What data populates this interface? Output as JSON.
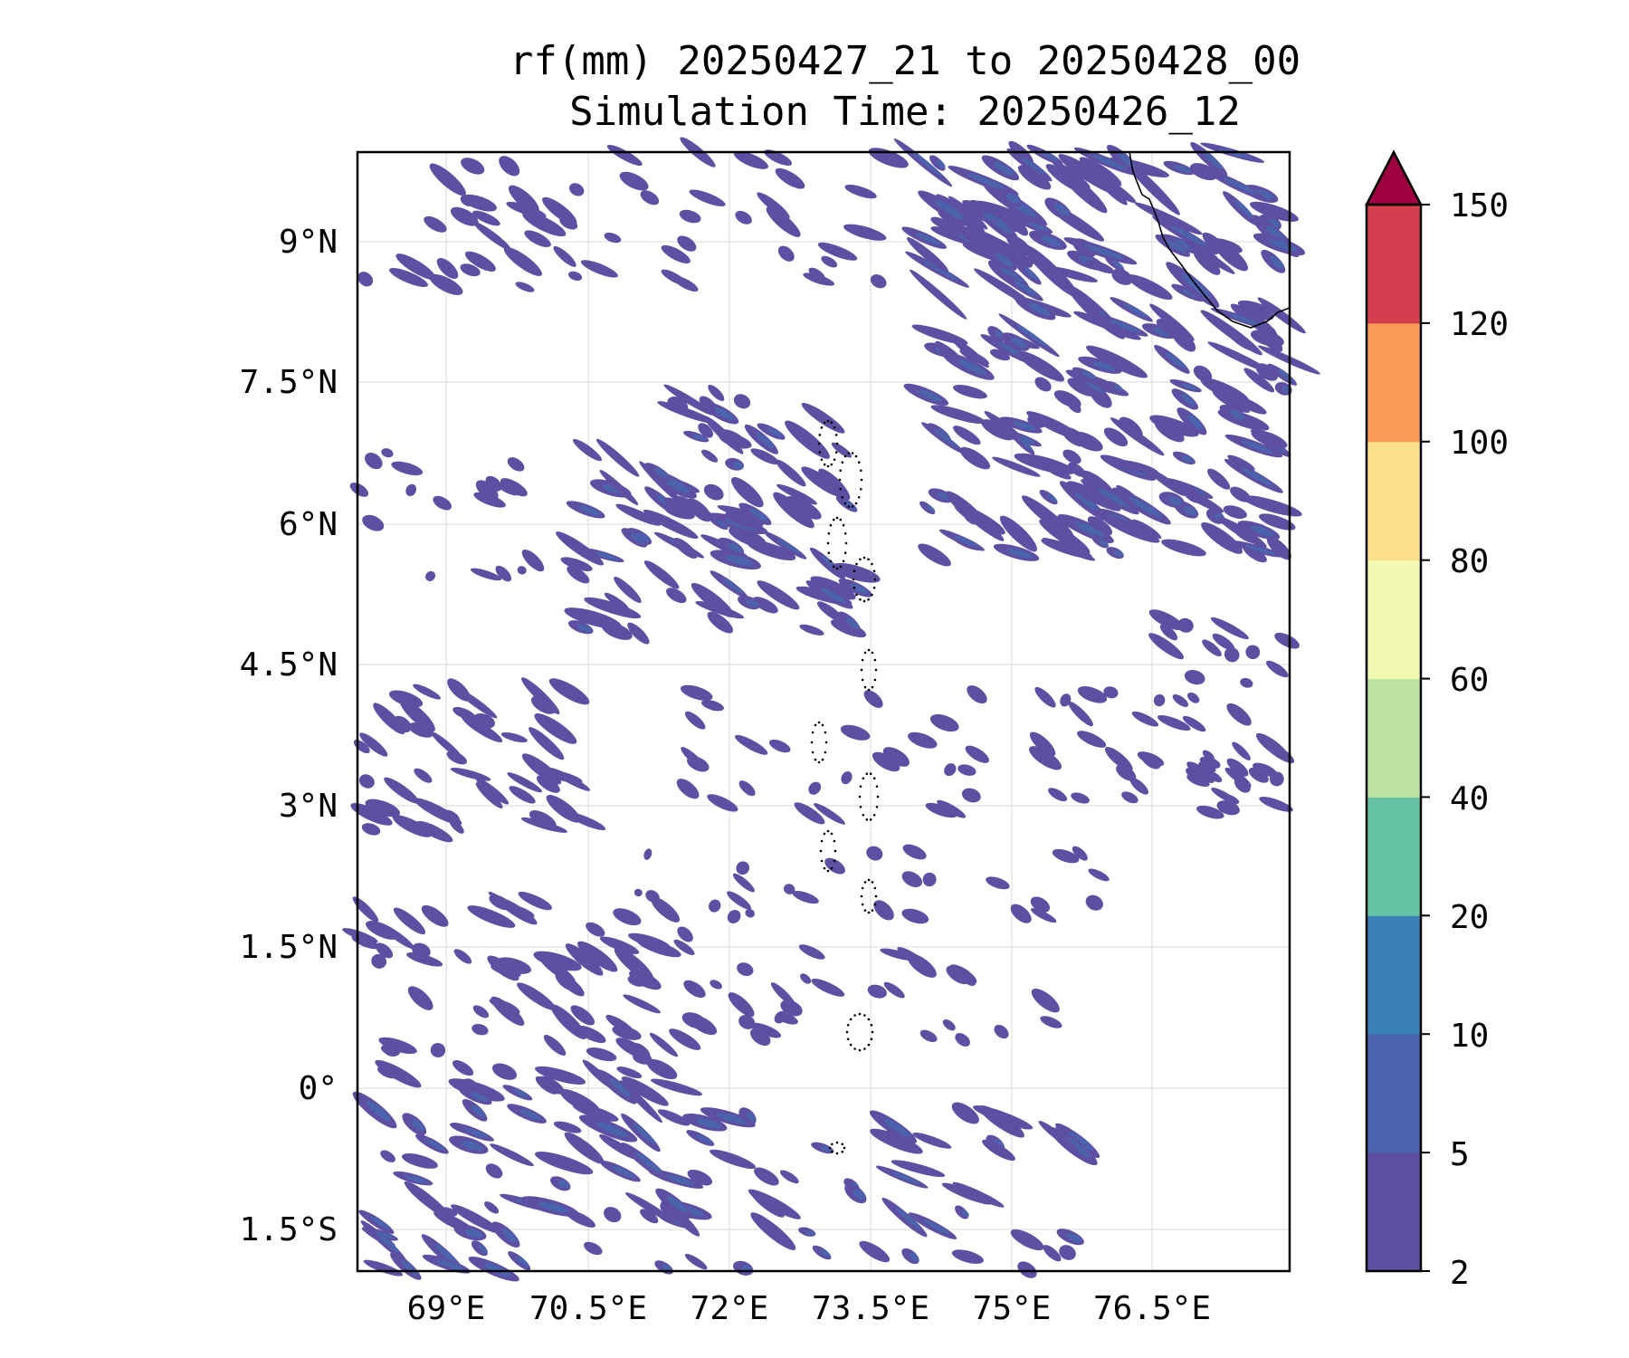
{
  "title": {
    "line1": "rf(mm) 20250427_21 to 20250428_00",
    "line2": "Simulation Time: 20250426_12"
  },
  "map": {
    "lon_ticks": [
      "69°E",
      "70.5°E",
      "72°E",
      "73.5°E",
      "75°E",
      "76.5°E"
    ],
    "lat_ticks": [
      "9°N",
      "7.5°N",
      "6°N",
      "4.5°N",
      "3°N",
      "1.5°N",
      "0°",
      "1.5°S"
    ],
    "gridlines": true,
    "coastline": "India southern tip (top-right)",
    "islands": "Maldives atolls (dotted, centre)"
  },
  "colorbar": {
    "extend": "max",
    "levels": [
      "2",
      "5",
      "10",
      "20",
      "40",
      "60",
      "80",
      "100",
      "120",
      "150"
    ],
    "colors": [
      "#5e4fa2",
      "#4b62ad",
      "#3980b9",
      "#66c2a5",
      "#bce4a0",
      "#f2f9b0",
      "#fde08b",
      "#f89b57",
      "#d53e4f",
      "#9e0142"
    ],
    "shown_colors_note": "rain shading uses lowest bins"
  },
  "chart_data": {
    "type": "heatmap",
    "variable": "rf(mm)",
    "x_range_deg_E": [
      67.9,
      77.8
    ],
    "y_range_deg_N": [
      -1.9,
      9.95
    ],
    "colorbar_levels": [
      2,
      5,
      10,
      20,
      40,
      60,
      80,
      100,
      120,
      150
    ],
    "dominant_bin": "2-5"
  }
}
